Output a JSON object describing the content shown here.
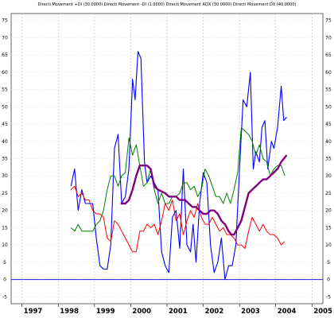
{
  "chart_data": {
    "type": "line",
    "title": "Directi Movement +DI (30.0000) Directi Movement -DI (1.0000) Directi Movement ADX (30.0000) Directi Movement DX (40.0000)",
    "xlabel": "",
    "ylabel": "",
    "xlim": [
      1996.7,
      2005.3
    ],
    "ylim": [
      -7,
      77
    ],
    "grid": true,
    "x_ticks": [
      "1997",
      "1998",
      "1999",
      "2000",
      "2001",
      "2002",
      "2003",
      "2004",
      "2005"
    ],
    "x_tick_values": [
      1997,
      1998,
      1999,
      2000,
      2001,
      2002,
      2003,
      2004,
      2005
    ],
    "y_ticks": [
      -5,
      0,
      5,
      10,
      15,
      20,
      25,
      30,
      35,
      40,
      45,
      50,
      55,
      60,
      65,
      70,
      75
    ],
    "y_tick_labels": [
      "-5",
      "0",
      "5",
      "10",
      "15",
      "20",
      "25",
      "30",
      "35",
      "40",
      "45",
      "50",
      "55",
      "60",
      "65",
      "70",
      "75"
    ],
    "reference_line": {
      "y": 0,
      "color": "#2222cc"
    },
    "series": [
      {
        "color": "#0000ff",
        "points": [
          [
            1998.35,
            27
          ],
          [
            1998.45,
            32
          ],
          [
            1998.55,
            20
          ],
          [
            1998.65,
            26
          ],
          [
            1998.75,
            22
          ],
          [
            1998.85,
            22
          ],
          [
            1998.95,
            22
          ],
          [
            1999.05,
            12
          ],
          [
            1999.15,
            4
          ],
          [
            1999.25,
            3
          ],
          [
            1999.35,
            3
          ],
          [
            1999.45,
            10
          ],
          [
            1999.55,
            38
          ],
          [
            1999.65,
            42
          ],
          [
            1999.75,
            22
          ],
          [
            1999.85,
            24
          ],
          [
            1999.95,
            32
          ],
          [
            2000.05,
            58
          ],
          [
            2000.12,
            52
          ],
          [
            2000.2,
            66
          ],
          [
            2000.28,
            64
          ],
          [
            2000.38,
            34
          ],
          [
            2000.45,
            28
          ],
          [
            2000.55,
            30
          ],
          [
            2000.65,
            28
          ],
          [
            2000.75,
            26
          ],
          [
            2000.85,
            8
          ],
          [
            2000.95,
            4
          ],
          [
            2001.05,
            2
          ],
          [
            2001.15,
            18
          ],
          [
            2001.25,
            20
          ],
          [
            2001.35,
            9
          ],
          [
            2001.45,
            32
          ],
          [
            2001.55,
            10
          ],
          [
            2001.65,
            8
          ],
          [
            2001.72,
            16
          ],
          [
            2001.8,
            5
          ],
          [
            2001.9,
            22
          ],
          [
            2002.0,
            31
          ],
          [
            2002.1,
            28
          ],
          [
            2002.2,
            10
          ],
          [
            2002.3,
            2
          ],
          [
            2002.4,
            5
          ],
          [
            2002.5,
            12
          ],
          [
            2002.6,
            0
          ],
          [
            2002.7,
            4
          ],
          [
            2002.8,
            4
          ],
          [
            2002.9,
            10
          ],
          [
            2003.0,
            32
          ],
          [
            2003.1,
            52
          ],
          [
            2003.2,
            50
          ],
          [
            2003.3,
            60
          ],
          [
            2003.38,
            32
          ],
          [
            2003.45,
            37
          ],
          [
            2003.55,
            34
          ],
          [
            2003.62,
            44
          ],
          [
            2003.7,
            46
          ],
          [
            2003.78,
            32
          ],
          [
            2003.88,
            40
          ],
          [
            2003.95,
            38
          ],
          [
            2004.05,
            44
          ],
          [
            2004.15,
            56
          ],
          [
            2004.22,
            46
          ],
          [
            2004.3,
            47
          ]
        ]
      },
      {
        "color": "#008000",
        "points": [
          [
            1998.35,
            15
          ],
          [
            1998.45,
            14
          ],
          [
            1998.55,
            16
          ],
          [
            1998.65,
            14
          ],
          [
            1998.85,
            14
          ],
          [
            1998.95,
            14
          ],
          [
            1999.05,
            16
          ],
          [
            1999.15,
            17
          ],
          [
            1999.25,
            20
          ],
          [
            1999.35,
            26
          ],
          [
            1999.45,
            30
          ],
          [
            1999.55,
            30
          ],
          [
            1999.65,
            27
          ],
          [
            1999.75,
            30
          ],
          [
            1999.85,
            31
          ],
          [
            1999.95,
            41
          ],
          [
            2000.05,
            36
          ],
          [
            2000.15,
            39
          ],
          [
            2000.25,
            33
          ],
          [
            2000.35,
            27
          ],
          [
            2000.45,
            28
          ],
          [
            2000.55,
            32
          ],
          [
            2000.65,
            26
          ],
          [
            2000.75,
            22
          ],
          [
            2000.85,
            25
          ],
          [
            2000.95,
            22
          ],
          [
            2001.05,
            22
          ],
          [
            2001.15,
            24
          ],
          [
            2001.25,
            24
          ],
          [
            2001.35,
            25
          ],
          [
            2001.45,
            28
          ],
          [
            2001.55,
            28
          ],
          [
            2001.65,
            26
          ],
          [
            2001.75,
            27
          ],
          [
            2001.85,
            24
          ],
          [
            2001.95,
            26
          ],
          [
            2002.05,
            32
          ],
          [
            2002.15,
            30
          ],
          [
            2002.25,
            27
          ],
          [
            2002.35,
            24
          ],
          [
            2002.45,
            24
          ],
          [
            2002.55,
            22
          ],
          [
            2002.65,
            25
          ],
          [
            2002.75,
            22
          ],
          [
            2002.85,
            26
          ],
          [
            2002.95,
            31
          ],
          [
            2003.05,
            44
          ],
          [
            2003.15,
            43
          ],
          [
            2003.25,
            42
          ],
          [
            2003.35,
            40
          ],
          [
            2003.45,
            36
          ],
          [
            2003.55,
            39
          ],
          [
            2003.65,
            35
          ],
          [
            2003.75,
            34
          ],
          [
            2003.85,
            30
          ],
          [
            2003.95,
            32
          ],
          [
            2004.05,
            33
          ],
          [
            2004.15,
            33
          ],
          [
            2004.25,
            30
          ]
        ]
      },
      {
        "color": "#ff0000",
        "points": [
          [
            1998.35,
            26
          ],
          [
            1998.45,
            27
          ],
          [
            1998.55,
            24
          ],
          [
            1998.65,
            25
          ],
          [
            1998.75,
            23
          ],
          [
            1998.85,
            23
          ],
          [
            1998.95,
            20
          ],
          [
            1999.05,
            19
          ],
          [
            1999.15,
            19
          ],
          [
            1999.25,
            18
          ],
          [
            1999.35,
            12
          ],
          [
            1999.45,
            11
          ],
          [
            1999.55,
            17
          ],
          [
            1999.65,
            16
          ],
          [
            1999.75,
            14
          ],
          [
            1999.85,
            12
          ],
          [
            1999.95,
            10
          ],
          [
            2000.05,
            8
          ],
          [
            2000.15,
            8
          ],
          [
            2000.25,
            14
          ],
          [
            2000.35,
            14
          ],
          [
            2000.45,
            16
          ],
          [
            2000.55,
            15
          ],
          [
            2000.65,
            16
          ],
          [
            2000.75,
            13
          ],
          [
            2000.85,
            17
          ],
          [
            2000.95,
            22
          ],
          [
            2001.05,
            20
          ],
          [
            2001.15,
            23
          ],
          [
            2001.25,
            17
          ],
          [
            2001.35,
            19
          ],
          [
            2001.45,
            13
          ],
          [
            2001.55,
            17
          ],
          [
            2001.65,
            20
          ],
          [
            2001.75,
            18
          ],
          [
            2001.85,
            22
          ],
          [
            2001.95,
            18
          ],
          [
            2002.05,
            16
          ],
          [
            2002.15,
            16
          ],
          [
            2002.25,
            18
          ],
          [
            2002.35,
            16
          ],
          [
            2002.45,
            14
          ],
          [
            2002.55,
            15
          ],
          [
            2002.65,
            13
          ],
          [
            2002.75,
            13
          ],
          [
            2002.85,
            12
          ],
          [
            2002.95,
            10
          ],
          [
            2003.05,
            10
          ],
          [
            2003.15,
            9
          ],
          [
            2003.25,
            14
          ],
          [
            2003.35,
            18
          ],
          [
            2003.45,
            16
          ],
          [
            2003.55,
            14
          ],
          [
            2003.65,
            16
          ],
          [
            2003.75,
            14
          ],
          [
            2003.85,
            13
          ],
          [
            2003.95,
            13
          ],
          [
            2004.05,
            12
          ],
          [
            2004.15,
            10
          ],
          [
            2004.25,
            11
          ]
        ]
      },
      {
        "color": "#800080",
        "points": [
          [
            1999.72,
            22
          ],
          [
            1999.85,
            22
          ],
          [
            1999.95,
            23
          ],
          [
            2000.05,
            26
          ],
          [
            2000.15,
            30
          ],
          [
            2000.25,
            33
          ],
          [
            2000.45,
            33
          ],
          [
            2000.55,
            32
          ],
          [
            2000.65,
            27
          ],
          [
            2000.75,
            26
          ],
          [
            2000.95,
            25
          ],
          [
            2001.05,
            24
          ],
          [
            2001.25,
            24
          ],
          [
            2001.35,
            23
          ],
          [
            2001.5,
            23
          ],
          [
            2001.6,
            22
          ],
          [
            2001.7,
            21
          ],
          [
            2001.8,
            21
          ],
          [
            2001.9,
            20
          ],
          [
            2002.0,
            19
          ],
          [
            2002.1,
            19
          ],
          [
            2002.2,
            20
          ],
          [
            2002.3,
            20
          ],
          [
            2002.4,
            19
          ],
          [
            2002.5,
            17
          ],
          [
            2002.6,
            16
          ],
          [
            2002.7,
            14
          ],
          [
            2002.78,
            13
          ],
          [
            2002.85,
            13
          ],
          [
            2002.95,
            15
          ],
          [
            2003.05,
            17
          ],
          [
            2003.15,
            21
          ],
          [
            2003.25,
            25
          ],
          [
            2003.35,
            26
          ],
          [
            2003.45,
            27
          ],
          [
            2003.55,
            28
          ],
          [
            2003.65,
            29
          ],
          [
            2003.75,
            29
          ],
          [
            2003.85,
            30
          ],
          [
            2003.95,
            31
          ],
          [
            2004.05,
            32
          ],
          [
            2004.15,
            34
          ],
          [
            2004.3,
            36
          ]
        ]
      }
    ]
  }
}
